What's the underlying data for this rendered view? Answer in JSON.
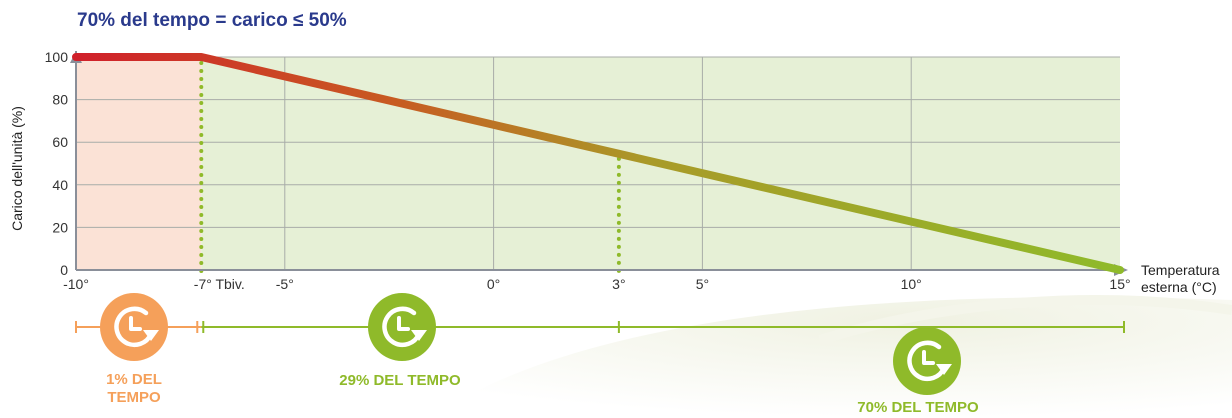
{
  "chart_data": {
    "type": "line",
    "title": "70% del tempo = carico ≤  50%",
    "ylabel": "Carico dell'unità (%)",
    "xlabel": [
      "Temperatura",
      "esterna (°C)"
    ],
    "xlim": [
      -10,
      15
    ],
    "ylim": [
      0,
      100
    ],
    "yticks": [
      0,
      20,
      40,
      60,
      80,
      100
    ],
    "xticks": [
      {
        "value": -10,
        "label": "-10°"
      },
      {
        "value": -7,
        "label": "-7° Tbiv."
      },
      {
        "value": -5,
        "label": "-5°"
      },
      {
        "value": 0,
        "label": "0°"
      },
      {
        "value": 3,
        "label": "3°"
      },
      {
        "value": 5,
        "label": "5°"
      },
      {
        "value": 10,
        "label": "10°"
      },
      {
        "value": 15,
        "label": "15°"
      }
    ],
    "vgrid": [
      -5,
      0,
      5,
      10
    ],
    "series": [
      {
        "x": [
          -10,
          -7,
          15
        ],
        "y": [
          100,
          100,
          0
        ]
      }
    ],
    "markers": [
      {
        "x": -7,
        "y": 100
      },
      {
        "x": 3,
        "y": 55
      }
    ],
    "regions": [
      {
        "from": -10,
        "to": -7,
        "color": "#fbe2d6"
      },
      {
        "from": -7,
        "to": 15,
        "color": "#e6f0d6"
      }
    ],
    "time_share": [
      {
        "label": [
          "1% DEL",
          "TEMPO"
        ],
        "from": -10,
        "to": -7,
        "color": "#f5a05a"
      },
      {
        "label": [
          "29% DEL TEMPO"
        ],
        "from": -7,
        "to": 3,
        "color": "#8fba2a"
      },
      {
        "label": [
          "70% DEL TEMPO"
        ],
        "from": 3,
        "to": 15,
        "color": "#8fba2a"
      }
    ],
    "colors": {
      "title": "#2a3a8c",
      "line_start": "#d0202a",
      "line_end": "#8fba2a",
      "axis": "#8a8f99",
      "grid": "#a8aca8",
      "dots": "#8fba2a"
    }
  }
}
